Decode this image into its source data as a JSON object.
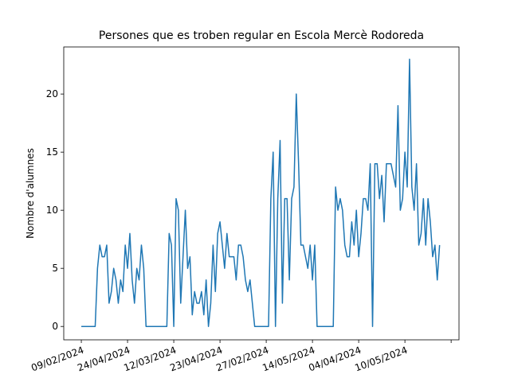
{
  "chart_data": {
    "type": "line",
    "title": "Persones que es troben regular en Escola Mercè Rodoreda",
    "y_label": "Nombre d'alumnes",
    "color": "#1f77b4",
    "values": [
      0,
      0,
      0,
      0,
      0,
      0,
      0,
      5,
      7,
      6,
      6,
      7,
      2,
      3,
      5,
      4,
      2,
      4,
      3,
      7,
      5,
      8,
      4,
      2,
      5,
      4,
      7,
      5,
      0,
      0,
      0,
      0,
      0,
      0,
      0,
      0,
      0,
      0,
      8,
      7,
      0,
      11,
      10,
      2,
      6,
      10,
      5,
      6,
      1,
      3,
      2,
      2,
      3,
      1,
      4,
      0,
      2,
      7,
      3,
      8,
      9,
      7,
      5,
      8,
      6,
      6,
      6,
      4,
      7,
      7,
      6,
      4,
      3,
      4,
      2,
      0,
      0,
      0,
      0,
      0,
      0,
      0,
      11,
      15,
      0,
      11,
      16,
      2,
      11,
      11,
      4,
      11,
      12,
      20,
      14,
      7,
      7,
      6,
      5,
      7,
      4,
      7,
      0,
      0,
      0,
      0,
      0,
      0,
      0,
      0,
      12,
      10,
      11,
      10,
      7,
      6,
      6,
      9,
      7,
      10,
      6,
      8,
      11,
      11,
      10,
      14,
      0,
      14,
      14,
      11,
      13,
      9,
      14,
      14,
      14,
      13,
      12,
      19,
      10,
      11,
      15,
      12,
      23,
      12,
      10,
      14,
      7,
      8,
      11,
      7,
      11,
      9,
      6,
      7,
      4,
      7
    ],
    "xlim": [
      -7.6,
      163.4
    ],
    "xticks": [
      {
        "value": 0,
        "label": "09/02/2024"
      },
      {
        "value": 20,
        "label": "24/04/2024"
      },
      {
        "value": 40,
        "label": "12/03/2024"
      },
      {
        "value": 60,
        "label": "23/04/2024"
      },
      {
        "value": 80,
        "label": "27/02/2024"
      },
      {
        "value": 100,
        "label": "14/05/2024"
      },
      {
        "value": 120,
        "label": "04/04/2024"
      },
      {
        "value": 140,
        "label": "10/05/2024"
      },
      {
        "value": 160,
        "label": null
      }
    ],
    "ylim": [
      -1.15,
      24.05
    ],
    "yticks": [
      0,
      5,
      10,
      15,
      20
    ]
  }
}
